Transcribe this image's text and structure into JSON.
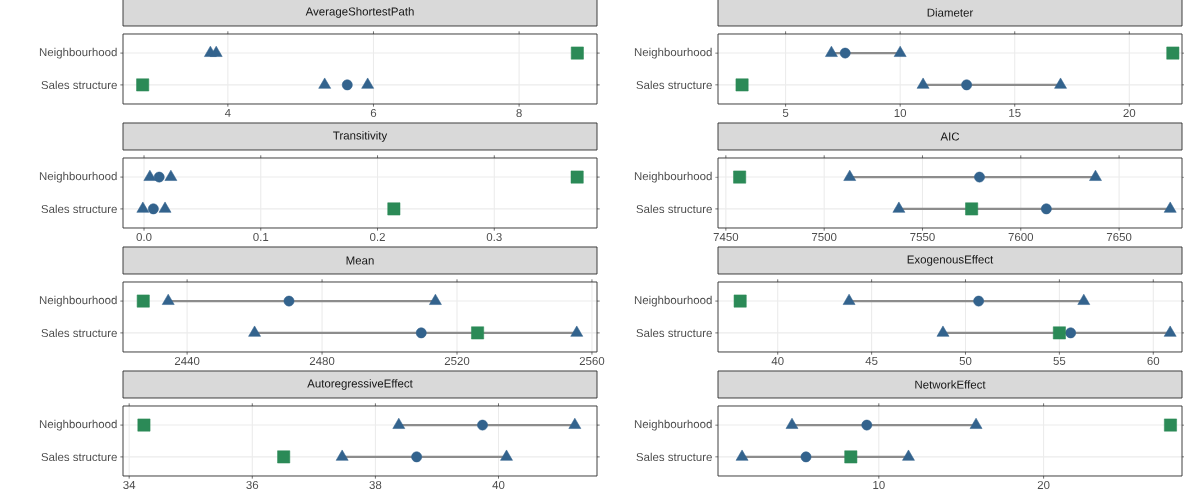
{
  "chart_data": [
    {
      "type": "scatter",
      "title": "AverageShortestPath",
      "orientation": "horizontal",
      "categories": [
        "Neighbourhood",
        "Sales structure"
      ],
      "xlim": [
        2.56,
        9.07
      ],
      "xticks": [
        4,
        6,
        8
      ],
      "grid": true,
      "series": [
        {
          "type": "bar",
          "color": "#8c8c8c",
          "base": [
            null,
            null
          ],
          "values": [
            null,
            null
          ]
        },
        {
          "color": "#33638d",
          "marker": "triangle",
          "values": [
            3.76,
            5.33
          ]
        },
        {
          "color": "#33638d",
          "marker": "triangle",
          "values": [
            3.84,
            5.92
          ]
        },
        {
          "color": "#33638d",
          "marker": "circle",
          "values": [
            null,
            5.64
          ]
        },
        {
          "color": "#2b8a57",
          "marker": "square",
          "values": [
            8.8,
            2.83
          ]
        }
      ]
    },
    {
      "type": "scatter",
      "title": "Diameter",
      "orientation": "horizontal",
      "categories": [
        "Neighbourhood",
        "Sales structure"
      ],
      "xlim": [
        2.05,
        22.3
      ],
      "xticks": [
        5,
        10,
        15,
        20
      ],
      "grid": true,
      "series": [
        {
          "type": "bar",
          "color": "#8c8c8c",
          "base": [
            7.0,
            11.0
          ],
          "values": [
            3.0,
            6.0
          ]
        },
        {
          "color": "#33638d",
          "marker": "triangle",
          "values": [
            7.0,
            11.0
          ]
        },
        {
          "color": "#33638d",
          "marker": "triangle",
          "values": [
            10.0,
            17.0
          ]
        },
        {
          "color": "#33638d",
          "marker": "circle",
          "values": [
            7.6,
            12.9
          ]
        },
        {
          "color": "#2b8a57",
          "marker": "square",
          "values": [
            21.9,
            3.1
          ]
        }
      ]
    },
    {
      "type": "scatter",
      "title": "Transitivity",
      "orientation": "horizontal",
      "categories": [
        "Neighbourhood",
        "Sales structure"
      ],
      "xlim": [
        -0.018,
        0.388
      ],
      "xticks": [
        {
          "value": 0,
          "label": "0.0"
        },
        {
          "value": 0.1,
          "label": "0.1"
        },
        {
          "value": 0.2,
          "label": "0.2"
        },
        {
          "value": 0.3,
          "label": "0.3"
        }
      ],
      "grid": true,
      "series": [
        {
          "type": "bar",
          "color": "#8c8c8c",
          "base": [
            null,
            null
          ],
          "values": [
            null,
            null
          ]
        },
        {
          "color": "#33638d",
          "marker": "triangle",
          "values": [
            0.005,
            -0.001
          ]
        },
        {
          "color": "#33638d",
          "marker": "triangle",
          "values": [
            0.023,
            0.018
          ]
        },
        {
          "color": "#33638d",
          "marker": "circle",
          "values": [
            0.013,
            0.008
          ]
        },
        {
          "color": "#2b8a57",
          "marker": "square",
          "values": [
            0.371,
            0.214
          ]
        }
      ]
    },
    {
      "type": "scatter",
      "title": "AIC",
      "orientation": "horizontal",
      "categories": [
        "Neighbourhood",
        "Sales structure"
      ],
      "xlim": [
        7446,
        7682
      ],
      "xticks": [
        7450,
        7500,
        7550,
        7600,
        7650
      ],
      "grid": true,
      "series": [
        {
          "type": "bar",
          "color": "#8c8c8c",
          "base": [
            7513,
            7538
          ],
          "values": [
            125,
            138
          ]
        },
        {
          "color": "#33638d",
          "marker": "triangle",
          "values": [
            7513,
            7538
          ]
        },
        {
          "color": "#33638d",
          "marker": "triangle",
          "values": [
            7638,
            7676
          ]
        },
        {
          "color": "#33638d",
          "marker": "circle",
          "values": [
            7579,
            7613
          ]
        },
        {
          "color": "#2b8a57",
          "marker": "square",
          "values": [
            7457,
            7575
          ]
        }
      ]
    },
    {
      "type": "scatter",
      "title": "Mean",
      "orientation": "horizontal",
      "categories": [
        "Neighbourhood",
        "Sales structure"
      ],
      "xlim": [
        2421,
        2561.5
      ],
      "xticks": [
        2440,
        2480,
        2520,
        2560
      ],
      "grid": true,
      "series": [
        {
          "type": "bar",
          "color": "#8c8c8c",
          "base": [
            2434.4,
            2460
          ],
          "values": [
            79.2,
            95.5
          ]
        },
        {
          "color": "#33638d",
          "marker": "triangle",
          "values": [
            2434.4,
            2460
          ]
        },
        {
          "color": "#33638d",
          "marker": "triangle",
          "values": [
            2513.6,
            2555.5
          ]
        },
        {
          "color": "#33638d",
          "marker": "circle",
          "values": [
            2470.2,
            2509.4
          ]
        },
        {
          "color": "#2b8a57",
          "marker": "square",
          "values": [
            2427,
            2526.1
          ]
        }
      ]
    },
    {
      "type": "scatter",
      "title": "ExogenousEffect",
      "orientation": "horizontal",
      "categories": [
        "Neighbourhood",
        "Sales structure"
      ],
      "xlim": [
        36.82,
        61.53
      ],
      "xticks": [
        40,
        45,
        50,
        55,
        60
      ],
      "grid": true,
      "series": [
        {
          "type": "bar",
          "color": "#8c8c8c",
          "base": [
            43.8,
            48.8
          ],
          "values": [
            12.5,
            12.1
          ]
        },
        {
          "color": "#33638d",
          "marker": "triangle",
          "values": [
            43.8,
            48.8
          ]
        },
        {
          "color": "#33638d",
          "marker": "triangle",
          "values": [
            56.3,
            60.9
          ]
        },
        {
          "color": "#33638d",
          "marker": "circle",
          "values": [
            50.7,
            55.6
          ]
        },
        {
          "color": "#2b8a57",
          "marker": "square",
          "values": [
            38.0,
            55.0
          ]
        }
      ]
    },
    {
      "type": "scatter",
      "title": "AutoregressiveEffect",
      "orientation": "horizontal",
      "categories": [
        "Neighbourhood",
        "Sales structure"
      ],
      "xlim": [
        33.9,
        41.6
      ],
      "xticks": [
        34,
        36,
        38,
        40
      ],
      "grid": true,
      "series": [
        {
          "type": "bar",
          "color": "#8c8c8c",
          "base": [
            38.38,
            37.46
          ],
          "values": [
            2.86,
            2.67
          ]
        },
        {
          "color": "#33638d",
          "marker": "triangle",
          "values": [
            38.38,
            37.46
          ]
        },
        {
          "color": "#33638d",
          "marker": "triangle",
          "values": [
            41.24,
            40.13
          ]
        },
        {
          "color": "#33638d",
          "marker": "circle",
          "values": [
            39.74,
            38.67
          ]
        },
        {
          "color": "#2b8a57",
          "marker": "square",
          "values": [
            34.24,
            36.51
          ]
        }
      ]
    },
    {
      "type": "scatter",
      "title": "NetworkEffect",
      "orientation": "horizontal",
      "categories": [
        "Neighbourhood",
        "Sales structure"
      ],
      "xlim": [
        0.24,
        28.4
      ],
      "xticks": [
        10,
        20
      ],
      "grid": true,
      "series": [
        {
          "type": "bar",
          "color": "#8c8c8c",
          "base": [
            4.73,
            1.7
          ],
          "values": [
            11.17,
            10.1
          ]
        },
        {
          "color": "#33638d",
          "marker": "triangle",
          "values": [
            4.73,
            1.7
          ]
        },
        {
          "color": "#33638d",
          "marker": "triangle",
          "values": [
            15.9,
            11.8
          ]
        },
        {
          "color": "#33638d",
          "marker": "circle",
          "values": [
            9.27,
            5.58
          ]
        },
        {
          "color": "#2b8a57",
          "marker": "square",
          "values": [
            27.7,
            8.3
          ]
        }
      ]
    }
  ]
}
